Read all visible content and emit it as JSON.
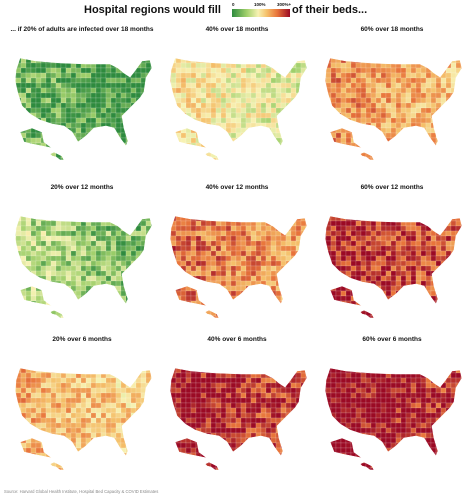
{
  "header": {
    "title_left": "Hospital regions would fill",
    "title_right": "of their beds...",
    "legend": {
      "ticks": [
        "0",
        "100%",
        "300%+"
      ],
      "colors": [
        "#2e8b3e",
        "#9fcf6a",
        "#f7f2b3",
        "#f5c06a",
        "#e8743a",
        "#9b0a24"
      ]
    }
  },
  "panels": [
    {
      "title": "... if 20% of adults are infected over 18 months",
      "infected_pct": 20,
      "months": 18,
      "level": 0.05
    },
    {
      "title": "40% over 18 months",
      "infected_pct": 40,
      "months": 18,
      "level": 0.42
    },
    {
      "title": "60% over 18 months",
      "infected_pct": 60,
      "months": 18,
      "level": 0.66
    },
    {
      "title": "20% over 12 months",
      "infected_pct": 20,
      "months": 12,
      "level": 0.2
    },
    {
      "title": "40% over 12 months",
      "infected_pct": 40,
      "months": 12,
      "level": 0.74
    },
    {
      "title": "60% over 12 months",
      "infected_pct": 60,
      "months": 12,
      "level": 0.9
    },
    {
      "title": "20% over 6 months",
      "infected_pct": 20,
      "months": 6,
      "level": 0.58
    },
    {
      "title": "40% over 6 months",
      "infected_pct": 40,
      "months": 6,
      "level": 0.95
    },
    {
      "title": "60% over 6 months",
      "infected_pct": 60,
      "months": 6,
      "level": 0.99
    }
  ],
  "source": "Source: Harvard Global Health Institute, Hospital Bed Capacity & COVID Estimates"
}
